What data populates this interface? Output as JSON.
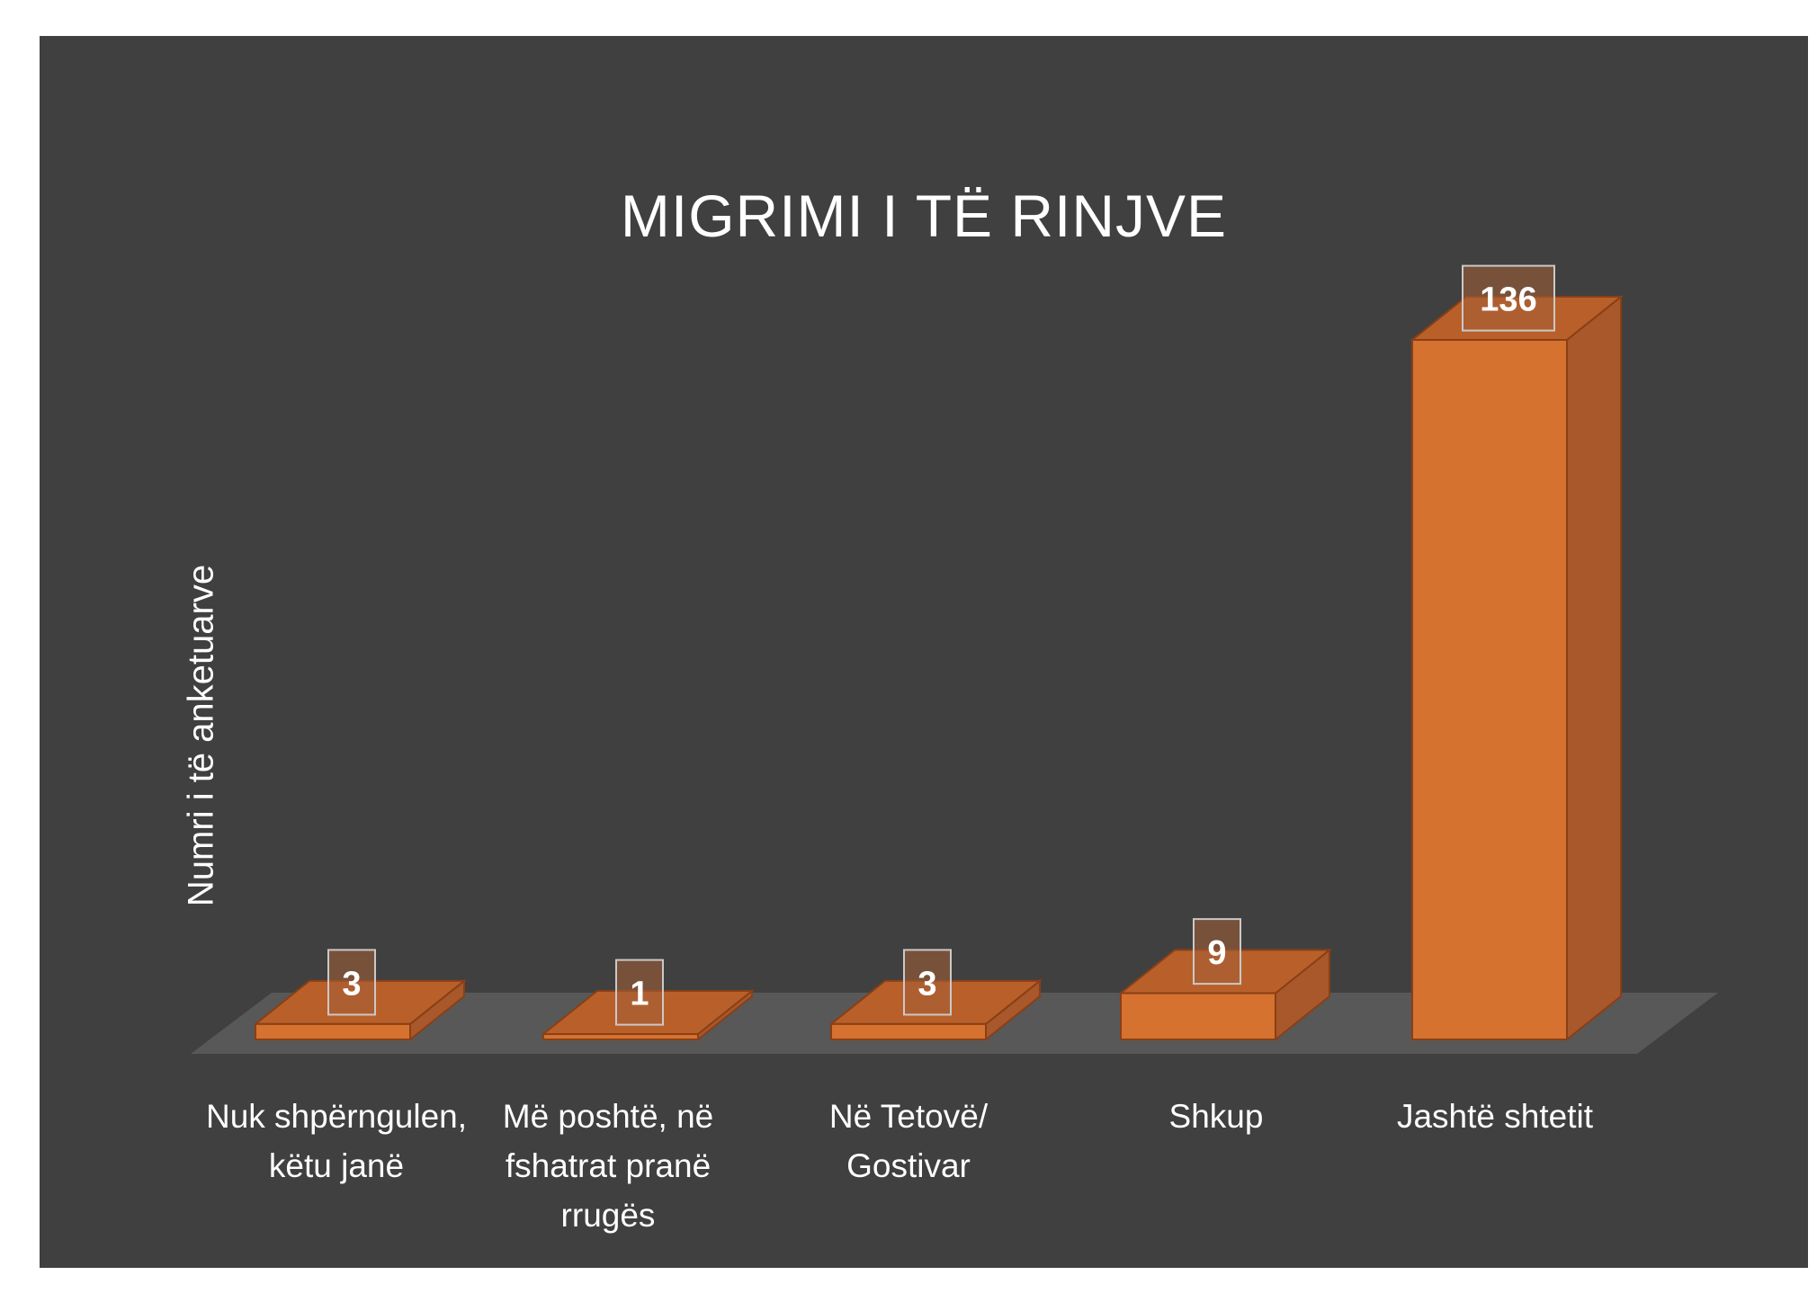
{
  "chart_data": {
    "type": "bar",
    "title": "MIGRIMI I TË RINJVE",
    "xlabel": "",
    "ylabel": "Numri i të anketuarve",
    "categories": [
      "Nuk shpërngulen, këtu janë",
      "Më poshtë, në fshatrat pranë rrugës",
      "Në Tetovë/ Gostivar",
      "Shkup",
      "Jashtë shtetit"
    ],
    "values": [
      3,
      1,
      3,
      9,
      136
    ],
    "data_labels": [
      "3",
      "1",
      "3",
      "9",
      "136"
    ],
    "ylim": [
      0,
      136
    ],
    "grid": false,
    "legend": "none",
    "colors": {
      "panel_background": "#404040",
      "floor": "#585858",
      "bar_front": "#D5722F",
      "bar_top": "#B9602A",
      "bar_side": "#A8582A",
      "bar_edge": "#8A3F16",
      "text": "#ffffff"
    }
  }
}
